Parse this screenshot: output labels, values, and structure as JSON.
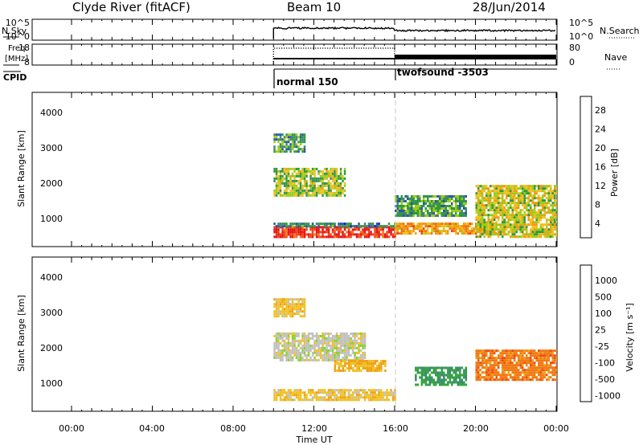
{
  "header": {
    "station": "Clyde River (fitACF)",
    "beam": "Beam 10",
    "date": "28/Jun/2014"
  },
  "nsky_panel": {
    "label": "N.Sky",
    "right_label": "N.Search",
    "left_ticks": [
      "10^5",
      "10^0"
    ],
    "right_ticks": [
      "10^5",
      "10^0"
    ]
  },
  "freq_panel": {
    "label_line1": "Freq.",
    "label_line2": "[MHz]",
    "right_label": "Nave",
    "left_ticks": [
      "18",
      "8"
    ],
    "right_ticks": [
      "80",
      "0"
    ]
  },
  "cpid": {
    "label": "CPID",
    "modes": [
      {
        "name": "normal 150",
        "start_hour": 10.0
      },
      {
        "name": "twofsound -3503",
        "start_hour": 16.0
      }
    ]
  },
  "x_axis": {
    "label": "Time UT",
    "ticks": [
      "00:00",
      "04:00",
      "08:00",
      "12:00",
      "16:00",
      "20:00",
      "00:00"
    ]
  },
  "power_panel": {
    "ylabel": "Slant Range [km]",
    "yticks": [
      "1000",
      "2000",
      "3000",
      "4000"
    ],
    "colorbar_label": "Power [dB]",
    "colorbar_ticks": [
      "4",
      "8",
      "12",
      "16",
      "20",
      "24",
      "28"
    ],
    "colors": [
      "#0a1bd8",
      "#2855b0",
      "#3f8a6a",
      "#2f9a3a",
      "#9ccc18",
      "#f0c020",
      "#f39a10",
      "#f07418",
      "#f04416",
      "#e81010"
    ]
  },
  "velocity_panel": {
    "ylabel": "Slant Range [km]",
    "yticks": [
      "1000",
      "2000",
      "3000",
      "4000"
    ],
    "colorbar_label": "Velocity [m s⁻¹]",
    "colorbar_ticks": [
      "1000",
      "500",
      "100",
      "25",
      "-25",
      "-100",
      "-500",
      "-1000"
    ],
    "colors": [
      "#1a2ad8",
      "#2a55b0",
      "#3a8a6a",
      "#30a43a",
      "#8ad028",
      "#c0c0c0",
      "#f0c020",
      "#f0a015",
      "#f07a15",
      "#f04a15",
      "#e81818"
    ]
  },
  "chart_data": {
    "type": "heatmap",
    "x_unit": "hours UT",
    "xlim": [
      0,
      24
    ],
    "ylim": [
      0,
      4500
    ],
    "data_start_hour": 10.0,
    "mode_change_hour": 16.0,
    "power_regions": [
      {
        "t0": 10.0,
        "t1": 16.0,
        "r0": 300,
        "r1": 600,
        "power_db": 28
      },
      {
        "t0": 10.0,
        "t1": 16.0,
        "r0": 600,
        "r1": 700,
        "power_db": 8
      },
      {
        "t0": 10.0,
        "t1": 13.5,
        "r0": 1500,
        "r1": 2300,
        "power_db": 14
      },
      {
        "t0": 10.0,
        "t1": 11.5,
        "r0": 2800,
        "r1": 3300,
        "power_db": 10
      },
      {
        "t0": 16.0,
        "t1": 21.0,
        "r0": 400,
        "r1": 700,
        "power_db": 20
      },
      {
        "t0": 16.0,
        "t1": 19.5,
        "r0": 900,
        "r1": 1500,
        "power_db": 10
      },
      {
        "t0": 20.0,
        "t1": 24.0,
        "r0": 300,
        "r1": 1800,
        "power_db": 16
      }
    ],
    "velocity_regions": [
      {
        "t0": 10.0,
        "t1": 16.0,
        "r0": 300,
        "r1": 650,
        "velocity": -200
      },
      {
        "t0": 10.0,
        "t1": 14.5,
        "r0": 1500,
        "r1": 2300,
        "velocity": 0
      },
      {
        "t0": 13.0,
        "t1": 15.5,
        "r0": 1200,
        "r1": 1500,
        "velocity": -300
      },
      {
        "t0": 10.0,
        "t1": 11.5,
        "r0": 2800,
        "r1": 3300,
        "velocity": -200
      },
      {
        "t0": 17.0,
        "t1": 19.5,
        "r0": 800,
        "r1": 1300,
        "velocity": 500
      },
      {
        "t0": 20.0,
        "t1": 24.0,
        "r0": 900,
        "r1": 1800,
        "velocity": -600
      }
    ]
  }
}
